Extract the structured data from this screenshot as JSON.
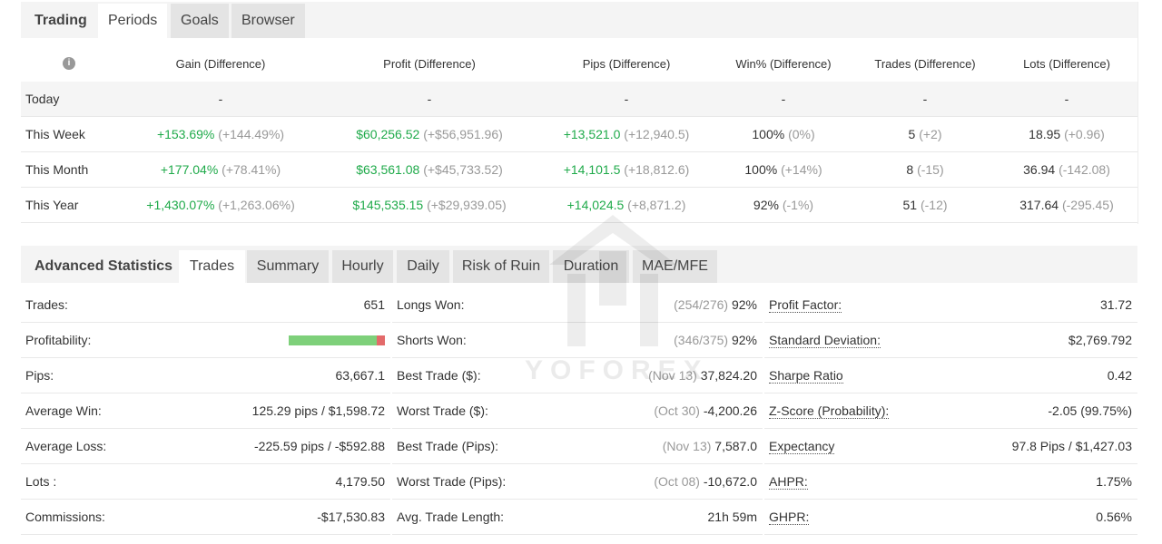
{
  "periods": {
    "tabs": [
      "Trading",
      "Periods",
      "Goals",
      "Browser"
    ],
    "headers": [
      "Gain (Difference)",
      "Profit (Difference)",
      "Pips (Difference)",
      "Win% (Difference)",
      "Trades (Difference)",
      "Lots (Difference)"
    ],
    "rows": [
      {
        "label": "Today",
        "cells": [
          {
            "value": "-"
          },
          {
            "value": "-"
          },
          {
            "value": "-"
          },
          {
            "value": "-"
          },
          {
            "value": "-"
          },
          {
            "value": "-"
          }
        ]
      },
      {
        "label": "This Week",
        "cells": [
          {
            "value": "+153.69%",
            "diff": "(+144.49%)"
          },
          {
            "value": "$60,256.52",
            "diff": "(+$56,951.96)"
          },
          {
            "value": "+13,521.0",
            "diff": "(+12,940.5)"
          },
          {
            "value": "100%",
            "diff": "(0%)"
          },
          {
            "value": "5",
            "diff": "(+2)"
          },
          {
            "value": "18.95",
            "diff": "(+0.96)"
          }
        ]
      },
      {
        "label": "This Month",
        "cells": [
          {
            "value": "+177.04%",
            "diff": "(+78.41%)"
          },
          {
            "value": "$63,561.08",
            "diff": "(+$45,733.52)"
          },
          {
            "value": "+14,101.5",
            "diff": "(+18,812.6)"
          },
          {
            "value": "100%",
            "diff": "(+14%)"
          },
          {
            "value": "8",
            "diff": "(-15)"
          },
          {
            "value": "36.94",
            "diff": "(-142.08)"
          }
        ]
      },
      {
        "label": "This Year",
        "cells": [
          {
            "value": "+1,430.07%",
            "diff": "(+1,263.06%)"
          },
          {
            "value": "$145,535.15",
            "diff": "(+$29,939.05)"
          },
          {
            "value": "+14,024.5",
            "diff": "(+8,871.2)"
          },
          {
            "value": "92%",
            "diff": "(-1%)"
          },
          {
            "value": "51",
            "diff": "(-12)"
          },
          {
            "value": "317.64",
            "diff": "(-295.45)"
          }
        ]
      }
    ]
  },
  "statistics": {
    "tabs": [
      "Advanced Statistics",
      "Trades",
      "Summary",
      "Hourly",
      "Daily",
      "Risk of Ruin",
      "Duration",
      "MAE/MFE"
    ],
    "columns": [
      [
        {
          "label": "Trades:",
          "value": "651"
        },
        {
          "label": "Profitability:"
        },
        {
          "label": "Pips:",
          "value": "63,667.1"
        },
        {
          "label": "Average Win:",
          "value": "125.29 pips / $1,598.72"
        },
        {
          "label": "Average Loss:",
          "value": "-225.59 pips / -$592.88"
        },
        {
          "label": "Lots :",
          "value": "4,179.50"
        },
        {
          "label": "Commissions:",
          "value": "-$17,530.83"
        }
      ],
      [
        {
          "label": "Longs Won:",
          "note": "(254/276)",
          "value": "92%"
        },
        {
          "label": "Shorts Won:",
          "note": "(346/375)",
          "value": "92%"
        },
        {
          "label": "Best Trade ($):",
          "note": "(Nov 13)",
          "value": "37,824.20"
        },
        {
          "label": "Worst Trade ($):",
          "note": "(Oct 30)",
          "value": "-4,200.26"
        },
        {
          "label": "Best Trade (Pips):",
          "note": "(Nov 13)",
          "value": "7,587.0"
        },
        {
          "label": "Worst Trade (Pips):",
          "note": "(Oct 08)",
          "value": "-10,672.0"
        },
        {
          "label": "Avg. Trade Length:",
          "value": "21h 59m"
        }
      ],
      [
        {
          "label": "Profit Factor:",
          "value": "31.72"
        },
        {
          "label": "Standard Deviation:",
          "value": "$2,769.792"
        },
        {
          "label": "Sharpe Ratio",
          "value": "0.42"
        },
        {
          "label": "Z-Score (Probability):",
          "value": "-2.05 (99.75%)"
        },
        {
          "label": "Expectancy",
          "value": "97.8 Pips / $1,427.03"
        },
        {
          "label": "AHPR:",
          "value": "1.75%"
        },
        {
          "label": "GHPR:",
          "value": "0.56%"
        }
      ]
    ]
  },
  "watermark": "YOFOREX"
}
